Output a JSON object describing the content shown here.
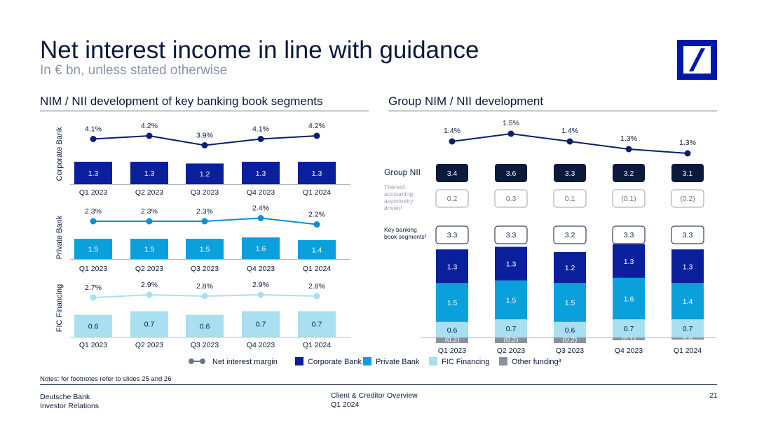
{
  "header": {
    "title": "Net interest income in line with guidance",
    "subtitle": "In € bn, unless stated otherwise"
  },
  "sections": {
    "left_title": "NIM / NII development of key banking book segments",
    "right_title": "Group NIM / NII development"
  },
  "colors": {
    "corporate": "#0a1f9b",
    "private": "#0aa0dc",
    "fic": "#a8e0f1",
    "other": "#8a919c",
    "nim_line": "#0b1f6b",
    "nii_box": "#0b1a3b"
  },
  "chart_data": [
    {
      "type": "bar",
      "name": "Corporate Bank",
      "categories": [
        "Q1 2023",
        "Q2 2023",
        "Q3 2023",
        "Q4 2023",
        "Q1 2024"
      ],
      "values": [
        1.3,
        1.3,
        1.2,
        1.3,
        1.3
      ],
      "value_labels": [
        "1.3",
        "1.3",
        "1.2",
        "1.3",
        "1.3"
      ],
      "nim_values": [
        4.1,
        4.2,
        3.9,
        4.1,
        4.2
      ],
      "nim_labels": [
        "4.1%",
        "4.2%",
        "3.9%",
        "4.1%",
        "4.2%"
      ]
    },
    {
      "type": "bar",
      "name": "Private Bank",
      "categories": [
        "Q1 2023",
        "Q2 2023",
        "Q3 2023",
        "Q4 2023",
        "Q1 2024"
      ],
      "values": [
        1.5,
        1.5,
        1.5,
        1.6,
        1.4
      ],
      "value_labels": [
        "1.5",
        "1.5",
        "1.5",
        "1.6",
        "1.4"
      ],
      "nim_values": [
        2.3,
        2.3,
        2.3,
        2.4,
        2.2
      ],
      "nim_labels": [
        "2.3%",
        "2.3%",
        "2.3%",
        "2.4%",
        "2.2%"
      ]
    },
    {
      "type": "bar",
      "name": "FIC Financing",
      "categories": [
        "Q1 2023",
        "Q2 2023",
        "Q3 2023",
        "Q4 2023",
        "Q1 2024"
      ],
      "values": [
        0.6,
        0.7,
        0.6,
        0.7,
        0.7
      ],
      "value_labels": [
        "0.6",
        "0.7",
        "0.6",
        "0.7",
        "0.7"
      ],
      "nim_values": [
        2.7,
        2.9,
        2.8,
        2.9,
        2.8
      ],
      "nim_labels": [
        "2.7%",
        "2.9%",
        "2.8%",
        "2.9%",
        "2.8%"
      ]
    },
    {
      "type": "bar",
      "name": "Group NIM / NII development",
      "categories": [
        "Q1 2023",
        "Q2 2023",
        "Q3 2023",
        "Q4 2023",
        "Q1 2024"
      ],
      "nim_values": [
        1.4,
        1.5,
        1.4,
        1.3,
        1.3
      ],
      "nim_labels": [
        "1.4%",
        "1.5%",
        "1.4%",
        "1.3%",
        "1.3%"
      ],
      "group_nii_label": "Group NII",
      "group_nii": [
        "3.4",
        "3.6",
        "3.3",
        "3.2",
        "3.1"
      ],
      "accounting_label": [
        "Thereof:",
        "accounting",
        "asymmetry",
        "driven¹"
      ],
      "accounting": [
        "0.2",
        "0.3",
        "0.1",
        "(0.1)",
        "(0.2)"
      ],
      "key_segments_label": [
        "Key banking",
        "book segments²"
      ],
      "key_segments": [
        "3.3",
        "3.3",
        "3.2",
        "3.3",
        "3.3"
      ],
      "series": [
        {
          "name": "Corporate Bank",
          "values": [
            1.3,
            1.3,
            1.2,
            1.3,
            1.3
          ],
          "labels": [
            "1.3",
            "1.3",
            "1.2",
            "1.3",
            "1.3"
          ]
        },
        {
          "name": "Private Bank",
          "values": [
            1.5,
            1.5,
            1.5,
            1.6,
            1.4
          ],
          "labels": [
            "1.5",
            "1.5",
            "1.5",
            "1.6",
            "1.4"
          ]
        },
        {
          "name": "FIC Financing",
          "values": [
            0.6,
            0.7,
            0.6,
            0.7,
            0.7
          ],
          "labels": [
            "0.6",
            "0.7",
            "0.6",
            "0.7",
            "0.7"
          ]
        },
        {
          "name": "Other funding³",
          "values": [
            -0.2,
            -0.2,
            -0.2,
            -0.1,
            0.0
          ],
          "labels": [
            "(0.2)",
            "(0.2)",
            "(0.2)",
            "(0.1)",
            "0.0"
          ]
        }
      ]
    }
  ],
  "legend": [
    {
      "label": "Net interest margin",
      "kind": "line"
    },
    {
      "label": "Corporate Bank",
      "kind": "corporate"
    },
    {
      "label": "Private Bank",
      "kind": "private"
    },
    {
      "label": "FIC Financing",
      "kind": "fic"
    },
    {
      "label": "Other funding³",
      "kind": "other"
    }
  ],
  "footer": {
    "notes": "Notes: for footnotes refer to slides 25 and 26",
    "company": "Deutsche Bank",
    "department": "Investor Relations",
    "doc_title": "Client & Creditor Overview",
    "doc_period": "Q1 2024",
    "page": "21"
  }
}
